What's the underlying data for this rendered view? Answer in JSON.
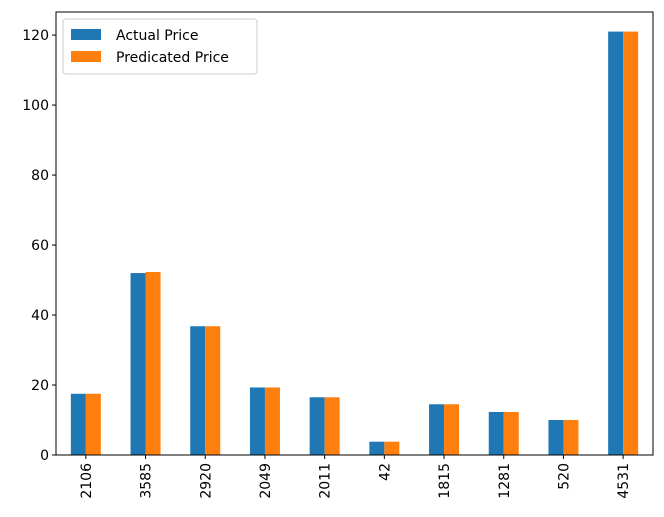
{
  "chart_data": {
    "type": "bar",
    "categories": [
      "2106",
      "3585",
      "2920",
      "2049",
      "2011",
      "42",
      "1815",
      "1281",
      "520",
      "4531"
    ],
    "series": [
      {
        "name": "Actual Price",
        "color": "#1f77b4",
        "values": [
          17.5,
          52.0,
          36.8,
          19.3,
          16.5,
          3.8,
          14.5,
          12.3,
          10.0,
          121.0
        ]
      },
      {
        "name": "Predicated Price",
        "color": "#ff7f0e",
        "values": [
          17.5,
          52.3,
          36.8,
          19.3,
          16.5,
          3.8,
          14.5,
          12.3,
          10.0,
          121.0
        ]
      }
    ],
    "yticks": [
      0,
      20,
      40,
      60,
      80,
      100,
      120
    ],
    "ylim": [
      0,
      126.6
    ],
    "xlabel": "",
    "ylabel": "",
    "title": "",
    "legend": "top-left",
    "grid": false
  }
}
